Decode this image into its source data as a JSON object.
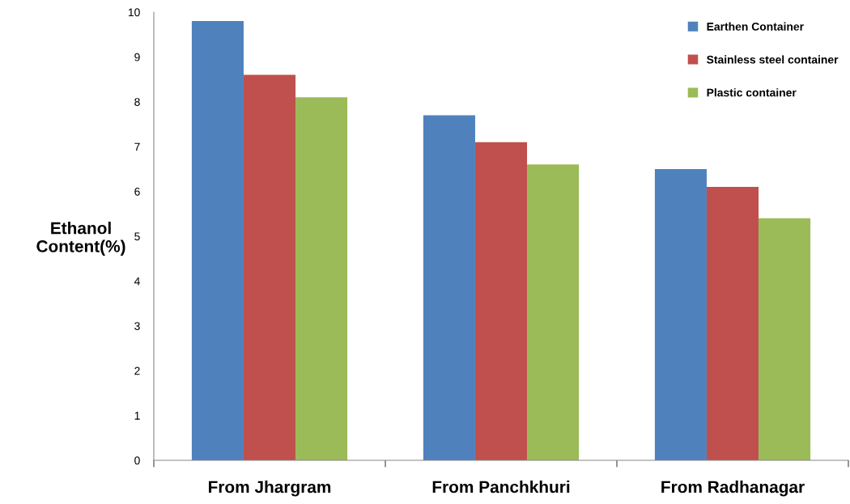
{
  "chart_data": {
    "type": "bar",
    "ylabel": "Ethanol\nContent(%)",
    "categories": [
      "From Jhargram",
      "From Panchkhuri",
      "From Radhanagar"
    ],
    "series": [
      {
        "name": "Earthen Container",
        "color": "#4f81bd",
        "values": [
          9.8,
          7.7,
          6.5
        ]
      },
      {
        "name": "Stainless steel container",
        "color": "#c0504d",
        "values": [
          8.6,
          7.1,
          6.1
        ]
      },
      {
        "name": "Plastic container",
        "color": "#9bbb59",
        "values": [
          8.1,
          6.6,
          5.4
        ]
      }
    ],
    "ylim": [
      0,
      10
    ],
    "yticks": [
      0,
      1,
      2,
      3,
      4,
      5,
      6,
      7,
      8,
      9,
      10
    ],
    "grid": false,
    "legend": "top right"
  }
}
